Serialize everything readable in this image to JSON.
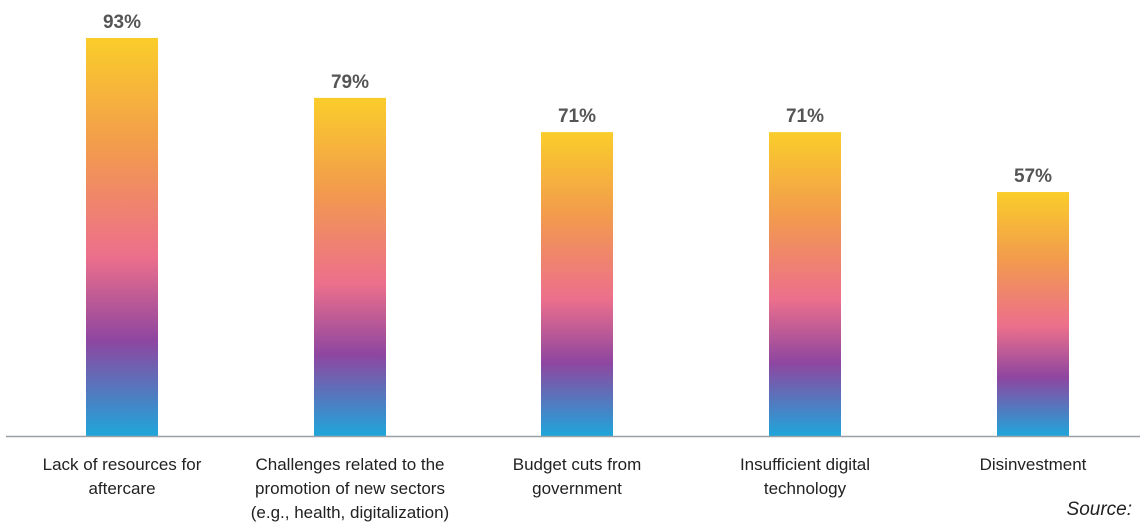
{
  "chart_data": {
    "type": "bar",
    "categories": [
      [
        "Lack of resources for",
        "aftercare"
      ],
      [
        "Challenges related to the",
        "promotion of new sectors",
        "(e.g., health, digitalization)"
      ],
      [
        "Budget cuts from",
        "government"
      ],
      [
        "Insufficient digital",
        "technology"
      ],
      [
        "Disinvestment"
      ]
    ],
    "values": [
      93,
      79,
      71,
      71,
      57
    ],
    "value_labels": [
      "93%",
      "79%",
      "71%",
      "71%",
      "57%"
    ],
    "title": "",
    "xlabel": "",
    "ylabel": "",
    "ylim": [
      0,
      100
    ],
    "grid": false,
    "legend": "none",
    "colors": {
      "gradient_top": "#FACD2A",
      "gradient_upper": "#F29A4E",
      "gradient_mid": "#EC6F8C",
      "gradient_lower": "#8E46A0",
      "gradient_bottom": "#1FA6DA",
      "baseline": "#9aa0a6",
      "value_label": "#555555",
      "category_label": "#222222"
    }
  },
  "source": "Source:"
}
